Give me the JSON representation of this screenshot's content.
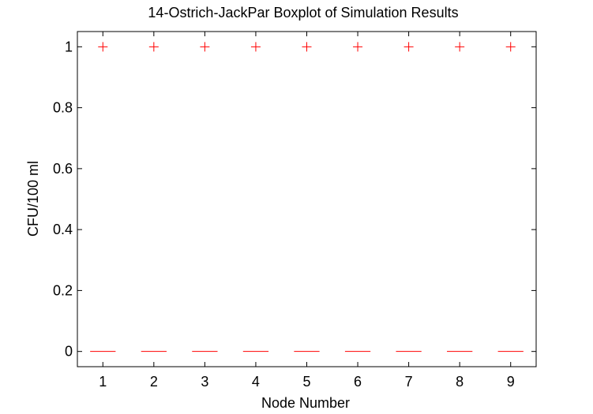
{
  "chart_data": {
    "type": "boxplot",
    "title": "14-Ostrich-JackPar Boxplot of Simulation Results",
    "xlabel": "Node Number",
    "ylabel": "CFU/100 ml",
    "categories": [
      "1",
      "2",
      "3",
      "4",
      "5",
      "6",
      "7",
      "8",
      "9"
    ],
    "medians": [
      0,
      0,
      0,
      0,
      0,
      0,
      0,
      0,
      0
    ],
    "outliers": [
      [
        1
      ],
      [
        1
      ],
      [
        1
      ],
      [
        1
      ],
      [
        1
      ],
      [
        1
      ],
      [
        1
      ],
      [
        1
      ],
      [
        1
      ]
    ],
    "ylim": [
      -0.05,
      1.05
    ],
    "yticks": [
      0,
      0.2,
      0.4,
      0.6,
      0.8,
      1
    ],
    "ytick_labels": [
      "0",
      "0.2",
      "0.4",
      "0.6",
      "0.8",
      "1"
    ],
    "grid": false,
    "colors": {
      "median": "#ff0000",
      "outlier": "#ff0000",
      "axes": "#000000"
    }
  }
}
